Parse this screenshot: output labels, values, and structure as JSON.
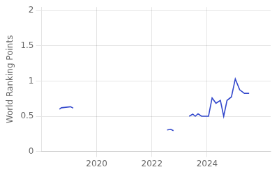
{
  "chart_data": {
    "type": "line",
    "ylabel": "World Ranking Points",
    "x": [
      2018.65,
      2018.72,
      2019.05,
      2019.15,
      null,
      2022.55,
      2022.68,
      2022.78,
      null,
      2023.35,
      2023.48,
      2023.57,
      2023.67,
      2023.8,
      2024.05,
      2024.18,
      2024.32,
      2024.48,
      2024.6,
      2024.72,
      2024.88,
      2025.02,
      2025.18,
      2025.35,
      2025.52
    ],
    "series": [
      {
        "color": "#3348cc",
        "values": [
          0.6,
          0.62,
          0.635,
          0.615,
          null,
          0.305,
          0.315,
          0.295,
          null,
          0.5,
          0.53,
          0.5,
          0.535,
          0.5,
          0.5,
          0.76,
          0.685,
          0.725,
          0.5,
          0.725,
          0.775,
          1.03,
          0.875,
          0.825,
          0.825
        ]
      }
    ],
    "xlim": [
      2018.0,
      2026.3
    ],
    "xticks": [
      2020,
      2022,
      2024
    ],
    "ylim": [
      0,
      2.05
    ],
    "yticks": [
      0,
      0.5,
      1,
      1.5,
      2
    ],
    "grid": true
  }
}
